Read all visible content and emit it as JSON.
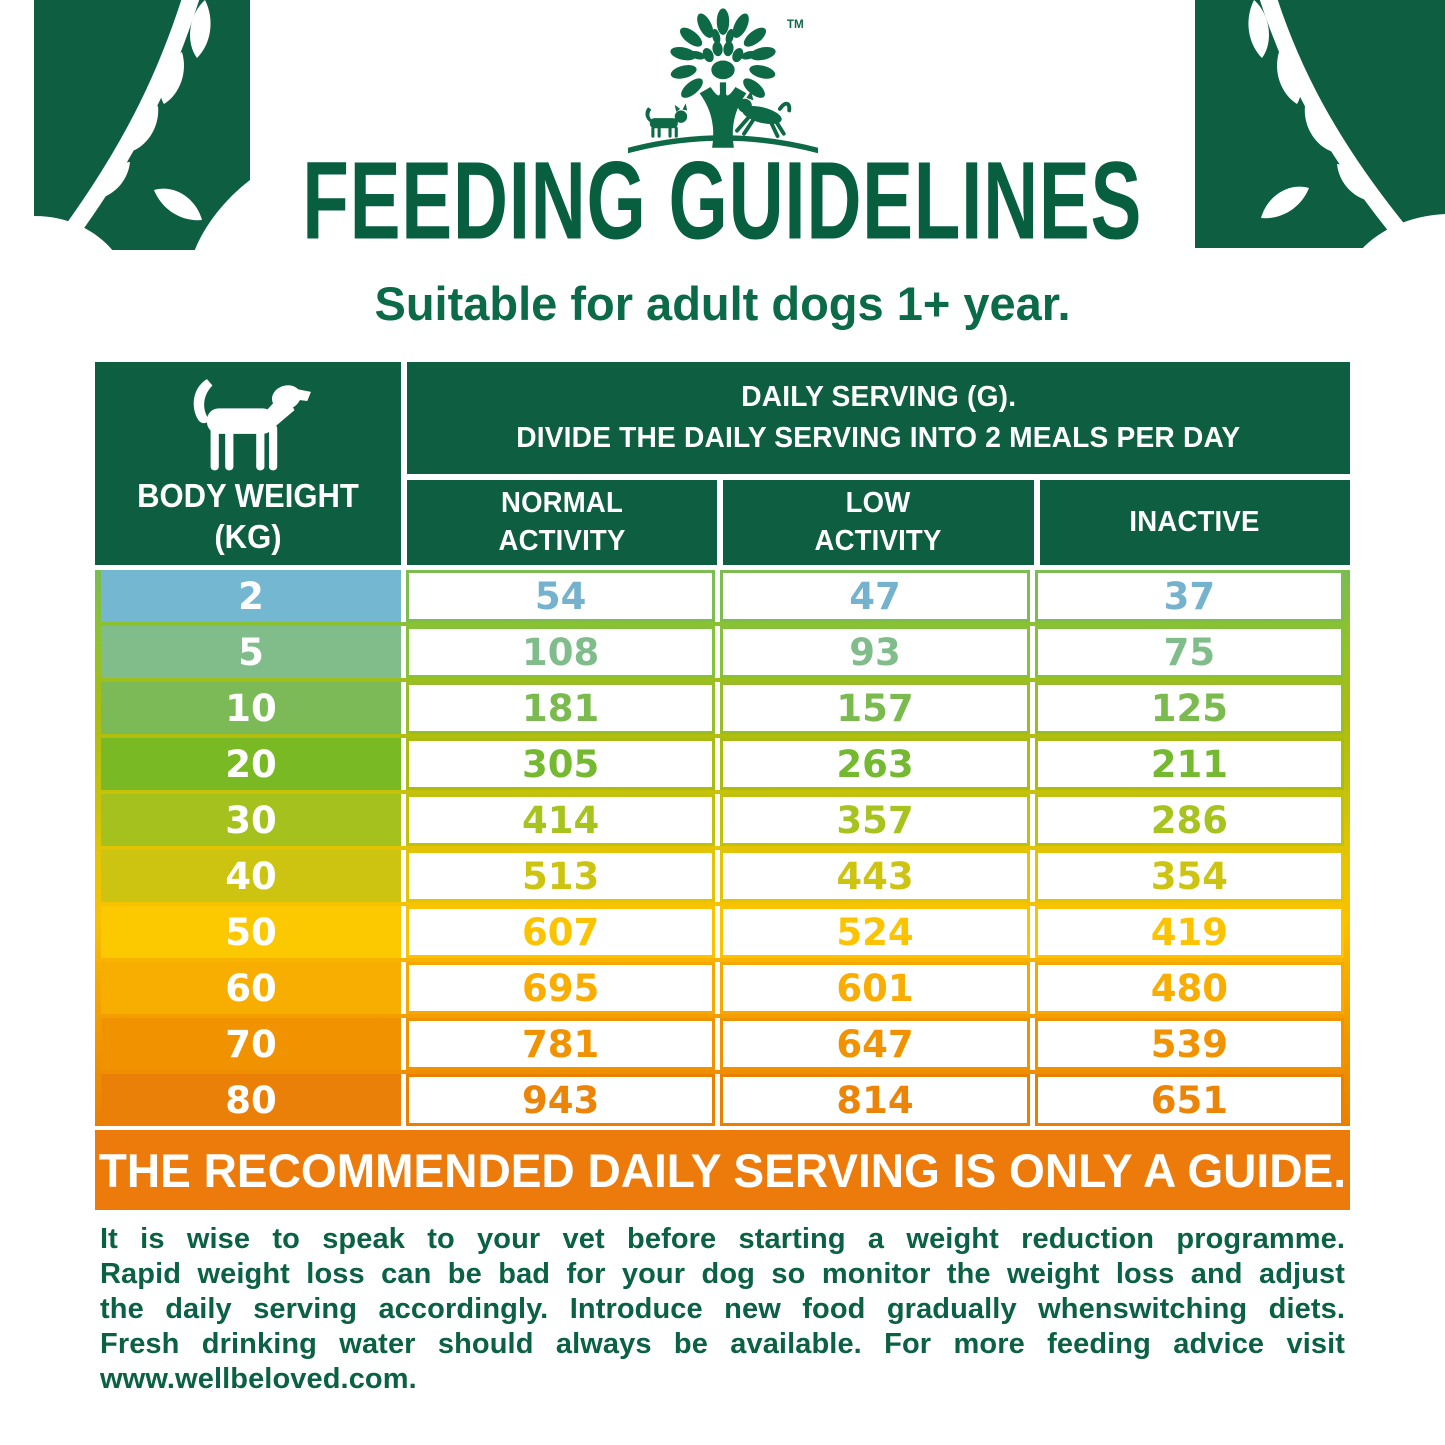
{
  "colors": {
    "brand_green": "#0e5f41",
    "title_green": "#075f40",
    "footer_green": "#0b6143",
    "banner_orange": "#ed7b0c"
  },
  "brand": {
    "logo": "tree-paw-cat-dog-logo",
    "trademark": "TM"
  },
  "header": {
    "title": "FEEDING GUIDELINES",
    "subtitle": "Suitable for adult dogs 1+ year."
  },
  "table": {
    "corner_header": {
      "line1": "BODY WEIGHT",
      "line2": "(KG)"
    },
    "serving_header": {
      "line1": "DAILY SERVING (G).",
      "line2": "DIVIDE THE DAILY SERVING INTO 2 MEALS PER DAY"
    },
    "columns": [
      {
        "label": "NORMAL ACTIVITY"
      },
      {
        "label": "LOW ACTIVITY"
      },
      {
        "label": "INACTIVE"
      }
    ],
    "rows": [
      {
        "weight": "2",
        "values": [
          "54",
          "47",
          "37"
        ],
        "band_color": "#74b7d0",
        "value_color": "#74b2cd",
        "border_color": "#7cbc52"
      },
      {
        "weight": "5",
        "values": [
          "108",
          "93",
          "75"
        ],
        "band_color": "#80bd8b",
        "value_color": "#80bd8b",
        "border_color": "#86c13c"
      },
      {
        "weight": "10",
        "values": [
          "181",
          "157",
          "125"
        ],
        "band_color": "#7cba57",
        "value_color": "#7aba4e",
        "border_color": "#97bd2b"
      },
      {
        "weight": "20",
        "values": [
          "305",
          "263",
          "211"
        ],
        "band_color": "#79ba24",
        "value_color": "#74b92f",
        "border_color": "#a9bc10"
      },
      {
        "weight": "30",
        "values": [
          "414",
          "357",
          "286"
        ],
        "band_color": "#a5c11d",
        "value_color": "#a8c21e",
        "border_color": "#c0c10c"
      },
      {
        "weight": "40",
        "values": [
          "513",
          "443",
          "354"
        ],
        "band_color": "#cdc412",
        "value_color": "#cdc412",
        "border_color": "#e2c404"
      },
      {
        "weight": "50",
        "values": [
          "607",
          "524",
          "419"
        ],
        "band_color": "#fcc800",
        "value_color": "#fcc400",
        "border_color": "#fac200"
      },
      {
        "weight": "60",
        "values": [
          "695",
          "601",
          "480"
        ],
        "band_color": "#f8ae00",
        "value_color": "#f8ad00",
        "border_color": "#f6a800"
      },
      {
        "weight": "70",
        "values": [
          "781",
          "647",
          "539"
        ],
        "band_color": "#f19300",
        "value_color": "#f19200",
        "border_color": "#ef9200"
      },
      {
        "weight": "80",
        "values": [
          "943",
          "814",
          "651"
        ],
        "band_color": "#ea8008",
        "value_color": "#ec8407",
        "border_color": "#ea8000"
      }
    ]
  },
  "banner": {
    "text": "THE RECOMMENDED DAILY SERVING IS ONLY A GUIDE.",
    "color": "#ed7b0c"
  },
  "footer": {
    "lines": [
      " It is wise to speak to your vet before starting a weight reduction programme.",
      "Rapid weight loss can be bad for your dog so monitor the weight loss and adjust",
      "the daily serving accordingly. Introduce new food gradually whenswitching diets.",
      "Fresh drinking water should always be available. For more feeding advice visit",
      "www.wellbeloved.com."
    ],
    "full_text": "It is wise to speak to your vet before starting a weight reduction programme. Rapid weight loss can be bad for your dog so monitor the weight loss and adjust the daily serving accordingly. Introduce new food gradually whenswitching diets. Fresh drinking water should always be available. For more feeding advice visit www.wellbeloved.com."
  },
  "chart_data": {
    "type": "table",
    "title": "FEEDING GUIDELINES",
    "subtitle": "Suitable for adult dogs 1+ year.",
    "note": "DAILY SERVING (G). DIVIDE THE DAILY SERVING INTO 2 MEALS PER DAY",
    "units": "grams per day",
    "columns": [
      "BODY WEIGHT (KG)",
      "NORMAL ACTIVITY",
      "LOW ACTIVITY",
      "INACTIVE"
    ],
    "rows": [
      [
        2,
        54,
        47,
        37
      ],
      [
        5,
        108,
        93,
        75
      ],
      [
        10,
        181,
        157,
        125
      ],
      [
        20,
        305,
        263,
        211
      ],
      [
        30,
        414,
        357,
        286
      ],
      [
        40,
        513,
        443,
        354
      ],
      [
        50,
        607,
        524,
        419
      ],
      [
        60,
        695,
        601,
        480
      ],
      [
        70,
        781,
        647,
        539
      ],
      [
        80,
        943,
        814,
        651
      ]
    ],
    "footnote": "THE RECOMMENDED DAILY SERVING IS ONLY A GUIDE."
  }
}
